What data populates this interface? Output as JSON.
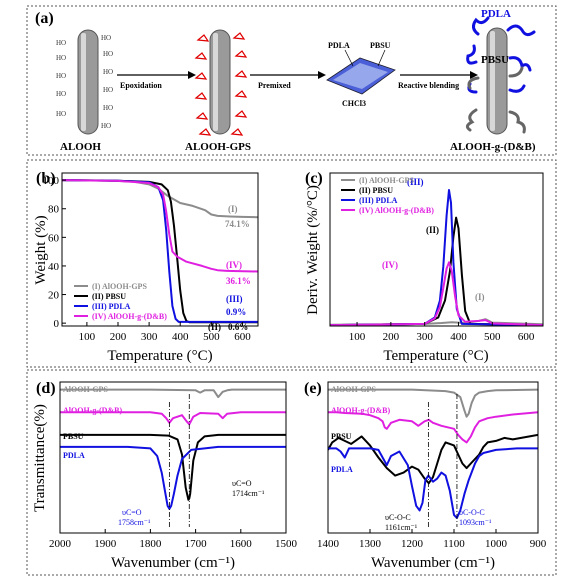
{
  "scheme": {
    "panel": "(a)",
    "steps": [
      "Epoxidation",
      "Premixed",
      "Reactive blending"
    ],
    "materials": [
      "ALOOH",
      "ALOOH-GPS",
      "ALOOH-g-(D&B)"
    ],
    "film_labels": [
      "PDLA",
      "PBSU",
      "CHCl3"
    ],
    "final_labels": [
      "PDLA",
      "PBSU"
    ],
    "surface_group": "HO"
  },
  "colors": {
    "gray": "#8c8c8c",
    "black": "#000000",
    "blue": "#1010e0",
    "magenta": "#e020e0",
    "red": "#e00000"
  },
  "chart_data": [
    {
      "panel": "(b)",
      "type": "line",
      "xlabel": "Temperature (°C)",
      "ylabel": "Weight (%)",
      "xlim": [
        20,
        650
      ],
      "ylim": [
        -2,
        105
      ],
      "xticks": [
        100,
        200,
        300,
        400,
        500,
        600
      ],
      "yticks": [
        0,
        20,
        40,
        60,
        80,
        100
      ],
      "legend": "bottom-left",
      "annotations": [
        "(I)",
        "74.1%",
        "(IV)",
        "36.1%",
        "(III)",
        "0.9%",
        "(II)",
        "0.6%"
      ],
      "series": [
        {
          "name": "(I) AlOOH-GPS",
          "color": "gray",
          "x": [
            20,
            150,
            250,
            300,
            330,
            360,
            400,
            440,
            480,
            500,
            520,
            560,
            600,
            650
          ],
          "y": [
            100,
            99.8,
            99,
            97,
            94,
            89,
            84,
            82,
            79,
            76,
            75,
            74.6,
            74.3,
            74.1
          ]
        },
        {
          "name": "(II) PBSU",
          "color": "black",
          "x": [
            20,
            200,
            300,
            340,
            360,
            370,
            380,
            390,
            400,
            410,
            420,
            430,
            650
          ],
          "y": [
            100,
            99.6,
            98.8,
            97,
            93,
            85,
            68,
            46,
            23,
            7,
            1.5,
            0.6,
            0.6
          ]
        },
        {
          "name": "(III) PDLA",
          "color": "blue",
          "x": [
            20,
            200,
            300,
            330,
            345,
            355,
            365,
            375,
            385,
            395,
            650
          ],
          "y": [
            100,
            99.6,
            98.5,
            95,
            86,
            65,
            36,
            12,
            3,
            0.9,
            0.9
          ]
        },
        {
          "name": "(IV) AlOOH-g-(D&B)",
          "color": "magenta",
          "x": [
            20,
            200,
            300,
            330,
            345,
            355,
            365,
            375,
            390,
            420,
            470,
            500,
            520,
            550,
            650
          ],
          "y": [
            100,
            99.5,
            98,
            95,
            90,
            78,
            62,
            50,
            46.5,
            43,
            40,
            38,
            37,
            36.5,
            36.1
          ]
        }
      ]
    },
    {
      "panel": "(c)",
      "type": "line",
      "xlabel": "Temperature (°C)",
      "ylabel": "Deriv. Weight (%/°C)",
      "xlim": [
        20,
        650
      ],
      "ylim": [
        0,
        3.6
      ],
      "xticks": [
        100,
        200,
        300,
        400,
        500,
        600
      ],
      "legend": "top-left",
      "annotations": [
        "(III)",
        "(II)",
        "(IV)",
        "(I)"
      ],
      "series": [
        {
          "name": "(I) AlOOH-GPS",
          "color": "gray",
          "x": [
            20,
            300,
            350,
            380,
            420,
            460,
            480,
            500,
            650
          ],
          "y": [
            0.03,
            0.05,
            0.07,
            0.09,
            0.07,
            0.12,
            0.16,
            0.08,
            0.04
          ]
        },
        {
          "name": "(II) PBSU",
          "color": "black",
          "x": [
            20,
            300,
            340,
            360,
            375,
            385,
            393,
            400,
            410,
            420,
            435,
            650
          ],
          "y": [
            0.02,
            0.05,
            0.2,
            0.6,
            1.3,
            2.1,
            2.55,
            2.3,
            1.2,
            0.35,
            0.05,
            0.02
          ]
        },
        {
          "name": "(III) PDLA",
          "color": "blue",
          "x": [
            20,
            300,
            330,
            345,
            355,
            365,
            372,
            378,
            385,
            395,
            410,
            650
          ],
          "y": [
            0.02,
            0.05,
            0.2,
            0.6,
            1.4,
            2.6,
            3.2,
            2.9,
            1.5,
            0.4,
            0.05,
            0.02
          ]
        },
        {
          "name": "(IV) AlOOH-g-(D&B)",
          "color": "magenta",
          "x": [
            20,
            300,
            330,
            345,
            355,
            365,
            372,
            380,
            390,
            400,
            420,
            460,
            480,
            500,
            650
          ],
          "y": [
            0.02,
            0.05,
            0.18,
            0.45,
            0.9,
            1.35,
            1.5,
            1.3,
            0.7,
            0.25,
            0.1,
            0.12,
            0.14,
            0.06,
            0.02
          ]
        }
      ]
    },
    {
      "panel": "(d)",
      "type": "line",
      "xlabel": "Wavenumber (cm⁻¹)",
      "ylabel": "Transmittance(%)",
      "xlim": [
        2000,
        1500
      ],
      "ylim": [
        0,
        10
      ],
      "xticks": [
        2000,
        1900,
        1800,
        1700,
        1600,
        1500
      ],
      "legend": "left labels",
      "annotations": [
        "υC=O",
        "1714cm⁻¹",
        "υC=O",
        "1758cm⁻¹"
      ],
      "series": [
        {
          "name": "AlOOH-GPS",
          "color": "gray",
          "x": [
            2000,
            1800,
            1700,
            1690,
            1680,
            1660,
            1650,
            1640,
            1630,
            1620,
            1600,
            1500
          ],
          "y": [
            9.5,
            9.5,
            9.45,
            9.3,
            9.45,
            9.45,
            9.0,
            9.35,
            9.45,
            9.5,
            9.5,
            9.5
          ]
        },
        {
          "name": "AlOOH-g-(D&B)",
          "color": "magenta",
          "x": [
            2000,
            1800,
            1775,
            1765,
            1758,
            1750,
            1730,
            1720,
            1714,
            1705,
            1690,
            1650,
            1640,
            1630,
            1600,
            1500
          ],
          "y": [
            8.0,
            8.0,
            7.9,
            7.6,
            7.3,
            7.6,
            7.8,
            7.4,
            7.2,
            7.7,
            7.95,
            7.9,
            7.6,
            7.9,
            8.0,
            8.0
          ]
        },
        {
          "name": "PBSU",
          "color": "black",
          "x": [
            2000,
            1800,
            1760,
            1740,
            1730,
            1722,
            1716,
            1714,
            1712,
            1705,
            1695,
            1680,
            1650,
            1600,
            1500
          ],
          "y": [
            6.5,
            6.5,
            6.45,
            6.2,
            5.2,
            3.0,
            2.2,
            2.3,
            2.6,
            4.8,
            6.0,
            6.4,
            6.5,
            6.5,
            6.5
          ]
        },
        {
          "name": "PDLA",
          "color": "blue",
          "x": [
            2000,
            1850,
            1800,
            1785,
            1775,
            1768,
            1762,
            1758,
            1754,
            1748,
            1740,
            1730,
            1710,
            1650,
            1500
          ],
          "y": [
            5.7,
            5.7,
            5.6,
            5.1,
            4.0,
            2.8,
            1.8,
            1.6,
            1.8,
            2.6,
            3.8,
            4.9,
            5.5,
            5.7,
            5.7
          ]
        }
      ]
    },
    {
      "panel": "(e)",
      "type": "line",
      "xlabel": "Wavenumber (cm⁻¹)",
      "ylabel": "",
      "xlim": [
        1400,
        900
      ],
      "ylim": [
        0,
        10
      ],
      "xticks": [
        1400,
        1300,
        1200,
        1100,
        1000,
        900
      ],
      "legend": "left labels",
      "annotations": [
        "υC-O-C",
        "1161cm⁻¹",
        "υC-O-C",
        "1093cm⁻¹"
      ],
      "series": [
        {
          "name": "AlOOH-GPS",
          "color": "gray",
          "x": [
            1400,
            1200,
            1120,
            1100,
            1085,
            1075,
            1070,
            1065,
            1058,
            1050,
            1040,
            1020,
            1000,
            900
          ],
          "y": [
            9.5,
            9.5,
            9.4,
            9.3,
            9.0,
            8.1,
            7.7,
            7.9,
            8.6,
            9.1,
            9.3,
            9.4,
            9.45,
            9.5
          ]
        },
        {
          "name": "AlOOH-g-(D&B)",
          "color": "magenta",
          "x": [
            1400,
            1380,
            1360,
            1320,
            1300,
            1280,
            1270,
            1265,
            1260,
            1250,
            1230,
            1200,
            1185,
            1180,
            1170,
            1160,
            1150,
            1130,
            1100,
            1090,
            1080,
            1070,
            1060,
            1050,
            1040,
            1020,
            1000,
            960,
            900
          ],
          "y": [
            8.0,
            8.0,
            7.95,
            7.9,
            7.8,
            7.6,
            7.4,
            7.0,
            6.9,
            7.3,
            7.5,
            7.4,
            7.1,
            7.2,
            7.4,
            7.5,
            7.3,
            7.1,
            6.9,
            6.5,
            6.2,
            6.0,
            6.4,
            7.0,
            7.4,
            7.6,
            7.7,
            7.85,
            8.0
          ]
        },
        {
          "name": "PBSU",
          "color": "black",
          "x": [
            1400,
            1390,
            1375,
            1360,
            1345,
            1330,
            1320,
            1300,
            1280,
            1260,
            1240,
            1220,
            1200,
            1185,
            1170,
            1160,
            1150,
            1140,
            1130,
            1120,
            1100,
            1090,
            1080,
            1070,
            1060,
            1050,
            1040,
            1030,
            1020,
            1000,
            980,
            960,
            940,
            920,
            900
          ],
          "y": [
            5.5,
            6.0,
            6.3,
            6.1,
            5.9,
            6.2,
            6.4,
            5.8,
            5.0,
            4.3,
            3.8,
            4.0,
            4.4,
            4.2,
            3.6,
            3.3,
            3.7,
            4.6,
            5.5,
            6.0,
            5.8,
            5.2,
            4.6,
            4.3,
            4.6,
            4.9,
            5.2,
            5.7,
            6.0,
            6.1,
            6.3,
            6.2,
            6.3,
            6.4,
            6.5
          ]
        },
        {
          "name": "PDLA",
          "color": "blue",
          "x": [
            1400,
            1380,
            1370,
            1360,
            1350,
            1300,
            1280,
            1270,
            1260,
            1250,
            1230,
            1210,
            1200,
            1190,
            1182,
            1175,
            1168,
            1161,
            1150,
            1140,
            1130,
            1120,
            1110,
            1100,
            1093,
            1085,
            1075,
            1065,
            1050,
            1040,
            1030,
            1000,
            950,
            900
          ],
          "y": [
            5.6,
            5.6,
            5.4,
            5.0,
            5.6,
            5.6,
            5.5,
            5.0,
            4.5,
            5.1,
            5.4,
            4.5,
            3.1,
            1.8,
            1.5,
            2.0,
            3.5,
            3.8,
            3.4,
            3.6,
            4.0,
            3.8,
            2.8,
            1.2,
            1.0,
            1.5,
            2.6,
            3.5,
            4.6,
            5.1,
            5.3,
            5.5,
            5.6,
            5.6
          ]
        }
      ]
    }
  ]
}
